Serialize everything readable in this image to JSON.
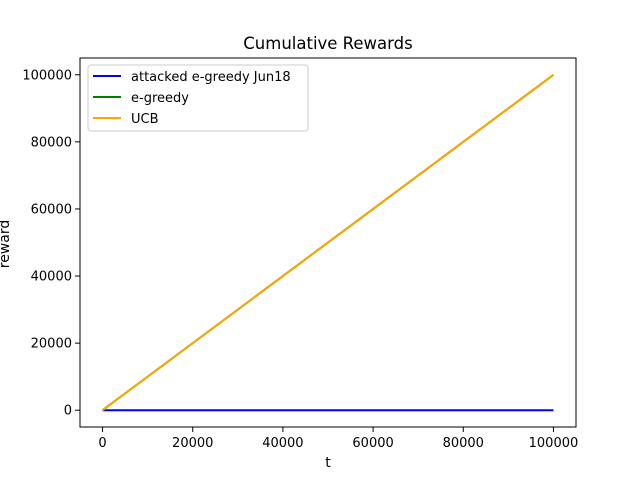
{
  "chart_data": {
    "type": "line",
    "title": "Cumulative Rewards",
    "xlabel": "t",
    "ylabel": "reward",
    "xlim": [
      -5000,
      105000
    ],
    "ylim": [
      -5000,
      105000
    ],
    "xticks": [
      0,
      20000,
      40000,
      60000,
      80000,
      100000
    ],
    "yticks": [
      0,
      20000,
      40000,
      60000,
      80000,
      100000
    ],
    "xtick_labels": [
      "0",
      "20000",
      "40000",
      "60000",
      "80000",
      "100000"
    ],
    "ytick_labels": [
      "0",
      "20000",
      "40000",
      "60000",
      "80000",
      "100000"
    ],
    "grid": false,
    "legend_position": "top-left",
    "series": [
      {
        "name": "attacked e-greedy Jun18",
        "color": "#0000ff",
        "x": [
          0,
          100000
        ],
        "y": [
          0,
          0
        ]
      },
      {
        "name": "e-greedy",
        "color": "#008000",
        "x": [
          0,
          100000
        ],
        "y": [
          0,
          100000
        ]
      },
      {
        "name": "UCB",
        "color": "#ffa500",
        "x": [
          0,
          100000
        ],
        "y": [
          0,
          100000
        ]
      }
    ]
  }
}
